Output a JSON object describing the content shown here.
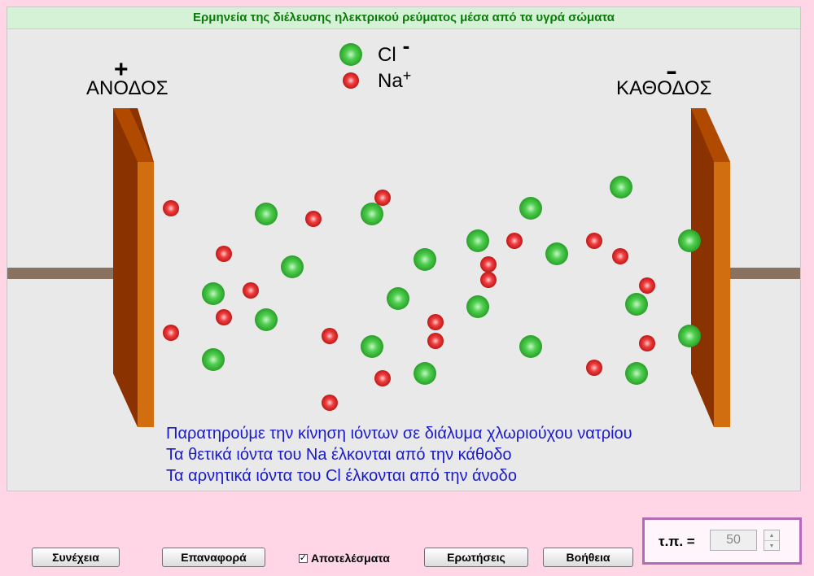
{
  "title": "Ερμηνεία της διέλευσης ηλεκτρικού ρεύματος μέσα από τα υγρά σώματα",
  "anode": {
    "label": "ΑΝΟΔΟΣ",
    "sign": "+"
  },
  "cathode": {
    "label": "ΚΑΘΟΔΟΣ",
    "sign": "-"
  },
  "legend": {
    "chloride": "Cl",
    "chloride_charge": "-",
    "sodium": "Na",
    "sodium_charge": "+"
  },
  "info_lines": [
    "Παρατηρούμε την κίνηση ιόντων σε διάλυμα χλωριούχου νατρίου",
    "Τα θετικά ιόντα του Na έλκονται από την κάθοδο",
    "Τα αρνητικά ιόντα του Cl έλκονται από την άνοδο"
  ],
  "buttons": {
    "continue": "Συνέχεια",
    "reset": "Επαναφορά",
    "questions": "Ερωτήσεις",
    "help": "Βοήθεια"
  },
  "results": {
    "label": "Αποτελέσματα",
    "checked": true
  },
  "tp": {
    "label": "τ.π. =",
    "value": "50"
  },
  "colors": {
    "chloride": "#3cbf3c",
    "sodium": "#e02a2a",
    "electrode": "#c8600a",
    "info_text": "#1a1acc",
    "title_text": "#0b7a0b"
  }
}
